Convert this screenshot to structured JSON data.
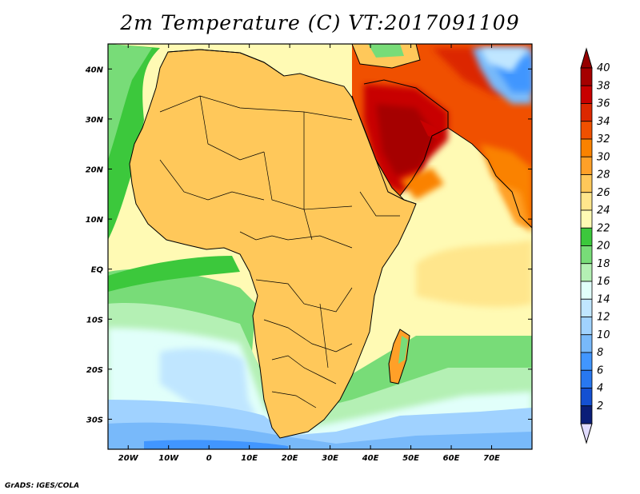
{
  "title": "2m Temperature (C) VT:2017091109",
  "credit": "GrADS: IGES/COLA",
  "map": {
    "lon_range": [
      -25,
      80
    ],
    "lat_range": [
      -36,
      45
    ],
    "x_ticks": [
      {
        "value": -20,
        "label": "20W"
      },
      {
        "value": -10,
        "label": "10W"
      },
      {
        "value": 0,
        "label": "0"
      },
      {
        "value": 10,
        "label": "10E"
      },
      {
        "value": 20,
        "label": "20E"
      },
      {
        "value": 30,
        "label": "30E"
      },
      {
        "value": 40,
        "label": "40E"
      },
      {
        "value": 50,
        "label": "50E"
      },
      {
        "value": 60,
        "label": "60E"
      },
      {
        "value": 70,
        "label": "70E"
      }
    ],
    "y_ticks": [
      {
        "value": 40,
        "label": "40N"
      },
      {
        "value": 30,
        "label": "30N"
      },
      {
        "value": 20,
        "label": "20N"
      },
      {
        "value": 10,
        "label": "10N"
      },
      {
        "value": 0,
        "label": "EQ"
      },
      {
        "value": -10,
        "label": "10S"
      },
      {
        "value": -20,
        "label": "20S"
      },
      {
        "value": -30,
        "label": "30S"
      }
    ]
  },
  "colorbar": {
    "levels": [
      {
        "label": "40",
        "color": "#a50000"
      },
      {
        "label": "38",
        "color": "#c80000"
      },
      {
        "label": "36",
        "color": "#dc2800"
      },
      {
        "label": "34",
        "color": "#f05000"
      },
      {
        "label": "32",
        "color": "#fa8200"
      },
      {
        "label": "30",
        "color": "#ffa028"
      },
      {
        "label": "28",
        "color": "#ffc85a"
      },
      {
        "label": "26",
        "color": "#ffe68c"
      },
      {
        "label": "24",
        "color": "#fffab4"
      },
      {
        "label": "22",
        "color": "#3cc83c"
      },
      {
        "label": "20",
        "color": "#78dc78"
      },
      {
        "label": "18",
        "color": "#b4f0b4"
      },
      {
        "label": "16",
        "color": "#e1fffa"
      },
      {
        "label": "14",
        "color": "#c0e6ff"
      },
      {
        "label": "12",
        "color": "#a0d2ff"
      },
      {
        "label": "10",
        "color": "#78b9fa"
      },
      {
        "label": "8",
        "color": "#4196ff"
      },
      {
        "label": "6",
        "color": "#2878f0"
      },
      {
        "label": "4",
        "color": "#1450d2"
      },
      {
        "label": "2",
        "color": "#0a1e78"
      }
    ],
    "over_color": "#960000",
    "under_color": "#e1dcff"
  }
}
